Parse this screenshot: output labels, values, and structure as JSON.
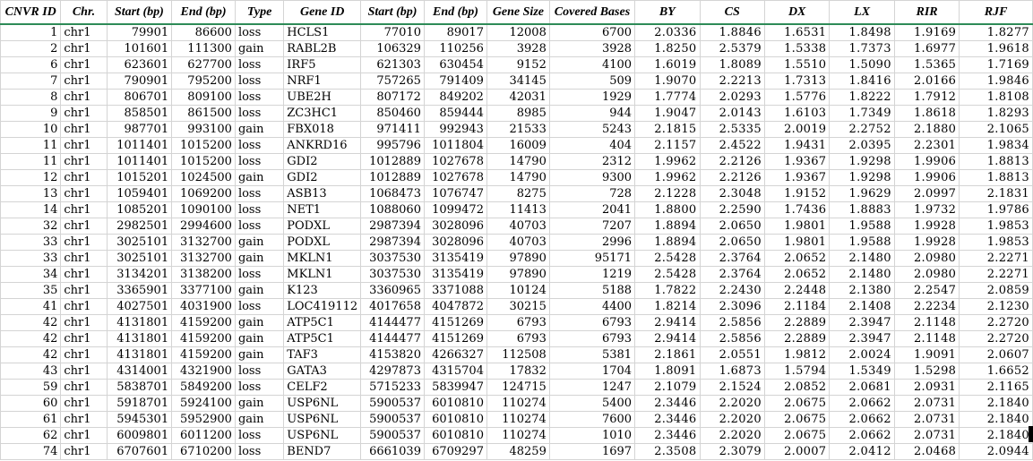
{
  "headers": [
    "CNVR ID",
    "Chr.",
    "Start (bp)",
    "End (bp)",
    "Type",
    "Gene ID",
    "Start (bp)",
    "End (bp)",
    "Gene Size",
    "Covered Bases",
    "BY",
    "CS",
    "DX",
    "LX",
    "RIR",
    "RJF"
  ],
  "rows": [
    [
      "1",
      "chr1",
      "79901",
      "86600",
      "loss",
      "HCLS1",
      "77010",
      "89017",
      "12008",
      "6700",
      "2.0336",
      "1.8846",
      "1.6531",
      "1.8498",
      "1.9169",
      "1.8277"
    ],
    [
      "2",
      "chr1",
      "101601",
      "111300",
      "gain",
      "RABL2B",
      "106329",
      "110256",
      "3928",
      "3928",
      "1.8250",
      "2.5379",
      "1.5338",
      "1.7373",
      "1.6977",
      "1.9618"
    ],
    [
      "6",
      "chr1",
      "623601",
      "627700",
      "loss",
      "IRF5",
      "621303",
      "630454",
      "9152",
      "4100",
      "1.6019",
      "1.8089",
      "1.5510",
      "1.5090",
      "1.5365",
      "1.7169"
    ],
    [
      "7",
      "chr1",
      "790901",
      "795200",
      "loss",
      "NRF1",
      "757265",
      "791409",
      "34145",
      "509",
      "1.9070",
      "2.2213",
      "1.7313",
      "1.8416",
      "2.0166",
      "1.9846"
    ],
    [
      "8",
      "chr1",
      "806701",
      "809100",
      "loss",
      "UBE2H",
      "807172",
      "849202",
      "42031",
      "1929",
      "1.7774",
      "2.0293",
      "1.5776",
      "1.8222",
      "1.7912",
      "1.8108"
    ],
    [
      "9",
      "chr1",
      "858501",
      "861500",
      "loss",
      "ZC3HC1",
      "850460",
      "859444",
      "8985",
      "944",
      "1.9047",
      "2.0143",
      "1.6103",
      "1.7349",
      "1.8618",
      "1.8293"
    ],
    [
      "10",
      "chr1",
      "987701",
      "993100",
      "gain",
      "FBX018",
      "971411",
      "992943",
      "21533",
      "5243",
      "2.1815",
      "2.5335",
      "2.0019",
      "2.2752",
      "2.1880",
      "2.1065"
    ],
    [
      "11",
      "chr1",
      "1011401",
      "1015200",
      "loss",
      "ANKRD16",
      "995796",
      "1011804",
      "16009",
      "404",
      "2.1157",
      "2.4522",
      "1.9431",
      "2.0395",
      "2.2301",
      "1.9834"
    ],
    [
      "11",
      "chr1",
      "1011401",
      "1015200",
      "loss",
      "GDI2",
      "1012889",
      "1027678",
      "14790",
      "2312",
      "1.9962",
      "2.2126",
      "1.9367",
      "1.9298",
      "1.9906",
      "1.8813"
    ],
    [
      "12",
      "chr1",
      "1015201",
      "1024500",
      "gain",
      "GDI2",
      "1012889",
      "1027678",
      "14790",
      "9300",
      "1.9962",
      "2.2126",
      "1.9367",
      "1.9298",
      "1.9906",
      "1.8813"
    ],
    [
      "13",
      "chr1",
      "1059401",
      "1069200",
      "loss",
      "ASB13",
      "1068473",
      "1076747",
      "8275",
      "728",
      "2.1228",
      "2.3048",
      "1.9152",
      "1.9629",
      "2.0997",
      "2.1831"
    ],
    [
      "14",
      "chr1",
      "1085201",
      "1090100",
      "loss",
      "NET1",
      "1088060",
      "1099472",
      "11413",
      "2041",
      "1.8800",
      "2.2590",
      "1.7436",
      "1.8883",
      "1.9732",
      "1.9786"
    ],
    [
      "32",
      "chr1",
      "2982501",
      "2994600",
      "loss",
      "PODXL",
      "2987394",
      "3028096",
      "40703",
      "7207",
      "1.8894",
      "2.0650",
      "1.9801",
      "1.9588",
      "1.9928",
      "1.9853"
    ],
    [
      "33",
      "chr1",
      "3025101",
      "3132700",
      "gain",
      "PODXL",
      "2987394",
      "3028096",
      "40703",
      "2996",
      "1.8894",
      "2.0650",
      "1.9801",
      "1.9588",
      "1.9928",
      "1.9853"
    ],
    [
      "33",
      "chr1",
      "3025101",
      "3132700",
      "gain",
      "MKLN1",
      "3037530",
      "3135419",
      "97890",
      "95171",
      "2.5428",
      "2.3764",
      "2.0652",
      "2.1480",
      "2.0980",
      "2.2271"
    ],
    [
      "34",
      "chr1",
      "3134201",
      "3138200",
      "loss",
      "MKLN1",
      "3037530",
      "3135419",
      "97890",
      "1219",
      "2.5428",
      "2.3764",
      "2.0652",
      "2.1480",
      "2.0980",
      "2.2271"
    ],
    [
      "35",
      "chr1",
      "3365901",
      "3377100",
      "gain",
      "K123",
      "3360965",
      "3371088",
      "10124",
      "5188",
      "1.7822",
      "2.2430",
      "2.2448",
      "2.1380",
      "2.2547",
      "2.0859"
    ],
    [
      "41",
      "chr1",
      "4027501",
      "4031900",
      "loss",
      "LOC419112",
      "4017658",
      "4047872",
      "30215",
      "4400",
      "1.8214",
      "2.3096",
      "2.1184",
      "2.1408",
      "2.2234",
      "2.1230"
    ],
    [
      "42",
      "chr1",
      "4131801",
      "4159200",
      "gain",
      "ATP5C1",
      "4144477",
      "4151269",
      "6793",
      "6793",
      "2.9414",
      "2.5856",
      "2.2889",
      "2.3947",
      "2.1148",
      "2.2720"
    ],
    [
      "42",
      "chr1",
      "4131801",
      "4159200",
      "gain",
      "ATP5C1",
      "4144477",
      "4151269",
      "6793",
      "6793",
      "2.9414",
      "2.5856",
      "2.2889",
      "2.3947",
      "2.1148",
      "2.2720"
    ],
    [
      "42",
      "chr1",
      "4131801",
      "4159200",
      "gain",
      "TAF3",
      "4153820",
      "4266327",
      "112508",
      "5381",
      "2.1861",
      "2.0551",
      "1.9812",
      "2.0024",
      "1.9091",
      "2.0607"
    ],
    [
      "43",
      "chr1",
      "4314001",
      "4321900",
      "loss",
      "GATA3",
      "4297873",
      "4315704",
      "17832",
      "1704",
      "1.8091",
      "1.6873",
      "1.5794",
      "1.5349",
      "1.5298",
      "1.6652"
    ],
    [
      "59",
      "chr1",
      "5838701",
      "5849200",
      "loss",
      "CELF2",
      "5715233",
      "5839947",
      "124715",
      "1247",
      "2.1079",
      "2.1524",
      "2.0852",
      "2.0681",
      "2.0931",
      "2.1165"
    ],
    [
      "60",
      "chr1",
      "5918701",
      "5924100",
      "gain",
      "USP6NL",
      "5900537",
      "6010810",
      "110274",
      "5400",
      "2.3446",
      "2.2020",
      "2.0675",
      "2.0662",
      "2.0731",
      "2.1840"
    ],
    [
      "61",
      "chr1",
      "5945301",
      "5952900",
      "gain",
      "USP6NL",
      "5900537",
      "6010810",
      "110274",
      "7600",
      "2.3446",
      "2.2020",
      "2.0675",
      "2.0662",
      "2.0731",
      "2.1840"
    ],
    [
      "62",
      "chr1",
      "6009801",
      "6011200",
      "loss",
      "USP6NL",
      "5900537",
      "6010810",
      "110274",
      "1010",
      "2.3446",
      "2.2020",
      "2.0675",
      "2.0662",
      "2.0731",
      "2.1840"
    ],
    [
      "74",
      "chr1",
      "6707601",
      "6710200",
      "loss",
      "BEND7",
      "6661039",
      "6709297",
      "48259",
      "1697",
      "2.3508",
      "2.3079",
      "2.0007",
      "2.0412",
      "2.0468",
      "2.0944"
    ]
  ]
}
